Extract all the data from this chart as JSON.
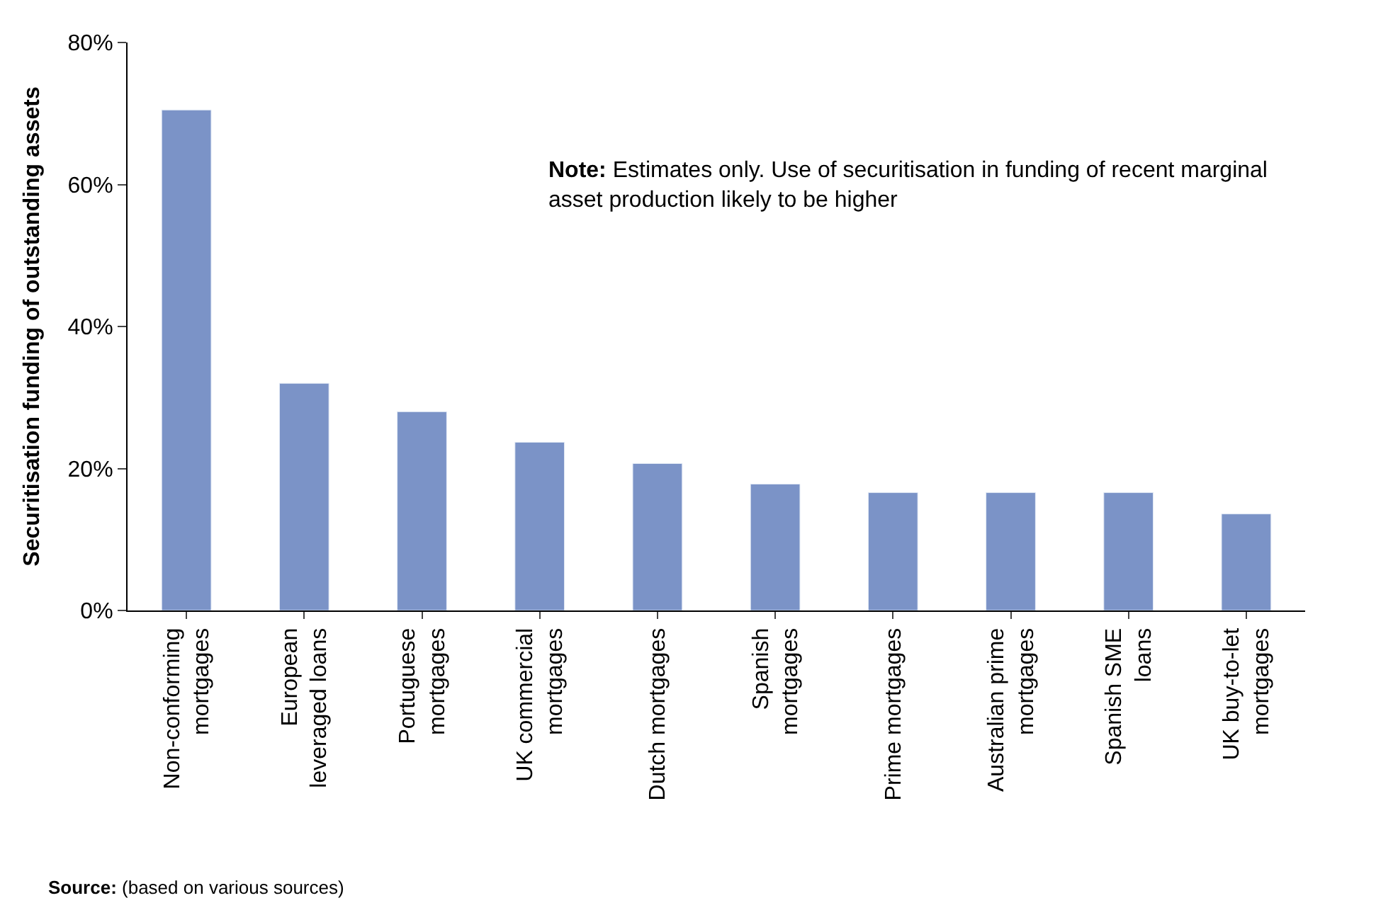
{
  "chart_data": {
    "type": "bar",
    "ylabel": "Securitisation funding of outstanding assets",
    "categories": [
      "Non-conforming\nmortgages",
      "European\nleveraged loans",
      "Portuguese\nmortgages",
      "UK commercial\nmortgages",
      "Dutch mortgages",
      "Spanish\nmortgages",
      "Prime mortgages",
      "Australian prime\nmortgages",
      "Spanish SME\nloans",
      "UK buy-to-let\nmortgages"
    ],
    "values": [
      70.5,
      32,
      28,
      23.7,
      20.7,
      17.8,
      16.6,
      16.6,
      16.6,
      13.6
    ],
    "color": "#7b93c7",
    "ylim": [
      0,
      80
    ],
    "yticks": [
      {
        "value": 0,
        "label": "0%"
      },
      {
        "value": 20,
        "label": "20%"
      },
      {
        "value": 40,
        "label": "40%"
      },
      {
        "value": 60,
        "label": "60%"
      },
      {
        "value": 80,
        "label": "80%"
      }
    ],
    "legend": false,
    "annotations": [
      "Note: Estimates only. Use of securitisation in funding of recent marginal\nasset production likely to be higher",
      "Source: (based on various sources)"
    ]
  }
}
